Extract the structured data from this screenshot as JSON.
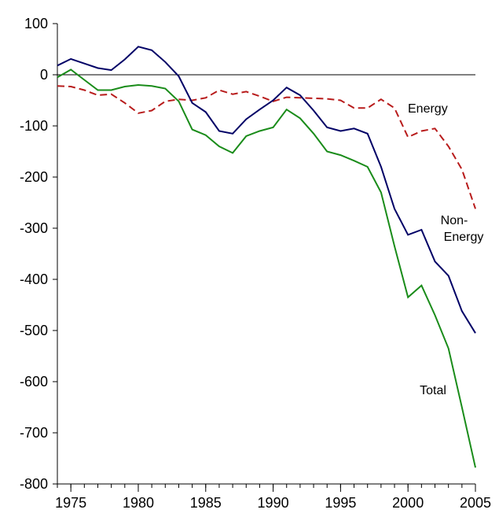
{
  "chart_data": {
    "type": "line",
    "x": [
      1974,
      1975,
      1976,
      1977,
      1978,
      1979,
      1980,
      1981,
      1982,
      1983,
      1984,
      1985,
      1986,
      1987,
      1988,
      1989,
      1990,
      1991,
      1992,
      1993,
      1994,
      1995,
      1996,
      1997,
      1998,
      1999,
      2000,
      2001,
      2002,
      2003,
      2004,
      2005
    ],
    "series": [
      {
        "name": "Energy",
        "color": "#b81c1c",
        "dashed": true,
        "values": [
          -22,
          -23,
          -30,
          -40,
          -38,
          -55,
          -75,
          -70,
          -52,
          -48,
          -50,
          -45,
          -30,
          -38,
          -33,
          -42,
          -52,
          -44,
          -45,
          -46,
          -47,
          -50,
          -65,
          -65,
          -48,
          -65,
          -122,
          -110,
          -105,
          -140,
          -185,
          -262
        ]
      },
      {
        "name": "Non-Energy",
        "color": "#000066",
        "dashed": false,
        "values": [
          18,
          31,
          22,
          13,
          9,
          30,
          55,
          48,
          25,
          -3,
          -55,
          -73,
          -110,
          -115,
          -87,
          -68,
          -50,
          -25,
          -40,
          -70,
          -103,
          -110,
          -105,
          -115,
          -180,
          -262,
          -313,
          -303,
          -365,
          -393,
          -462,
          -505
        ]
      },
      {
        "name": "Total",
        "color": "#1a8c1a",
        "dashed": false,
        "values": [
          -5,
          10,
          -10,
          -30,
          -30,
          -23,
          -20,
          -22,
          -27,
          -52,
          -107,
          -118,
          -140,
          -153,
          -120,
          -110,
          -103,
          -68,
          -85,
          -115,
          -150,
          -157,
          -168,
          -180,
          -230,
          -335,
          -435,
          -412,
          -470,
          -535,
          -650,
          -768
        ]
      }
    ],
    "xlim": [
      1974,
      2005
    ],
    "xticks": [
      1975,
      1980,
      1985,
      1990,
      1995,
      2000,
      2005
    ],
    "ylim": [
      -800,
      100
    ],
    "yticks": [
      100,
      0,
      -100,
      -200,
      -300,
      -400,
      -500,
      -600,
      -700,
      -800
    ]
  }
}
